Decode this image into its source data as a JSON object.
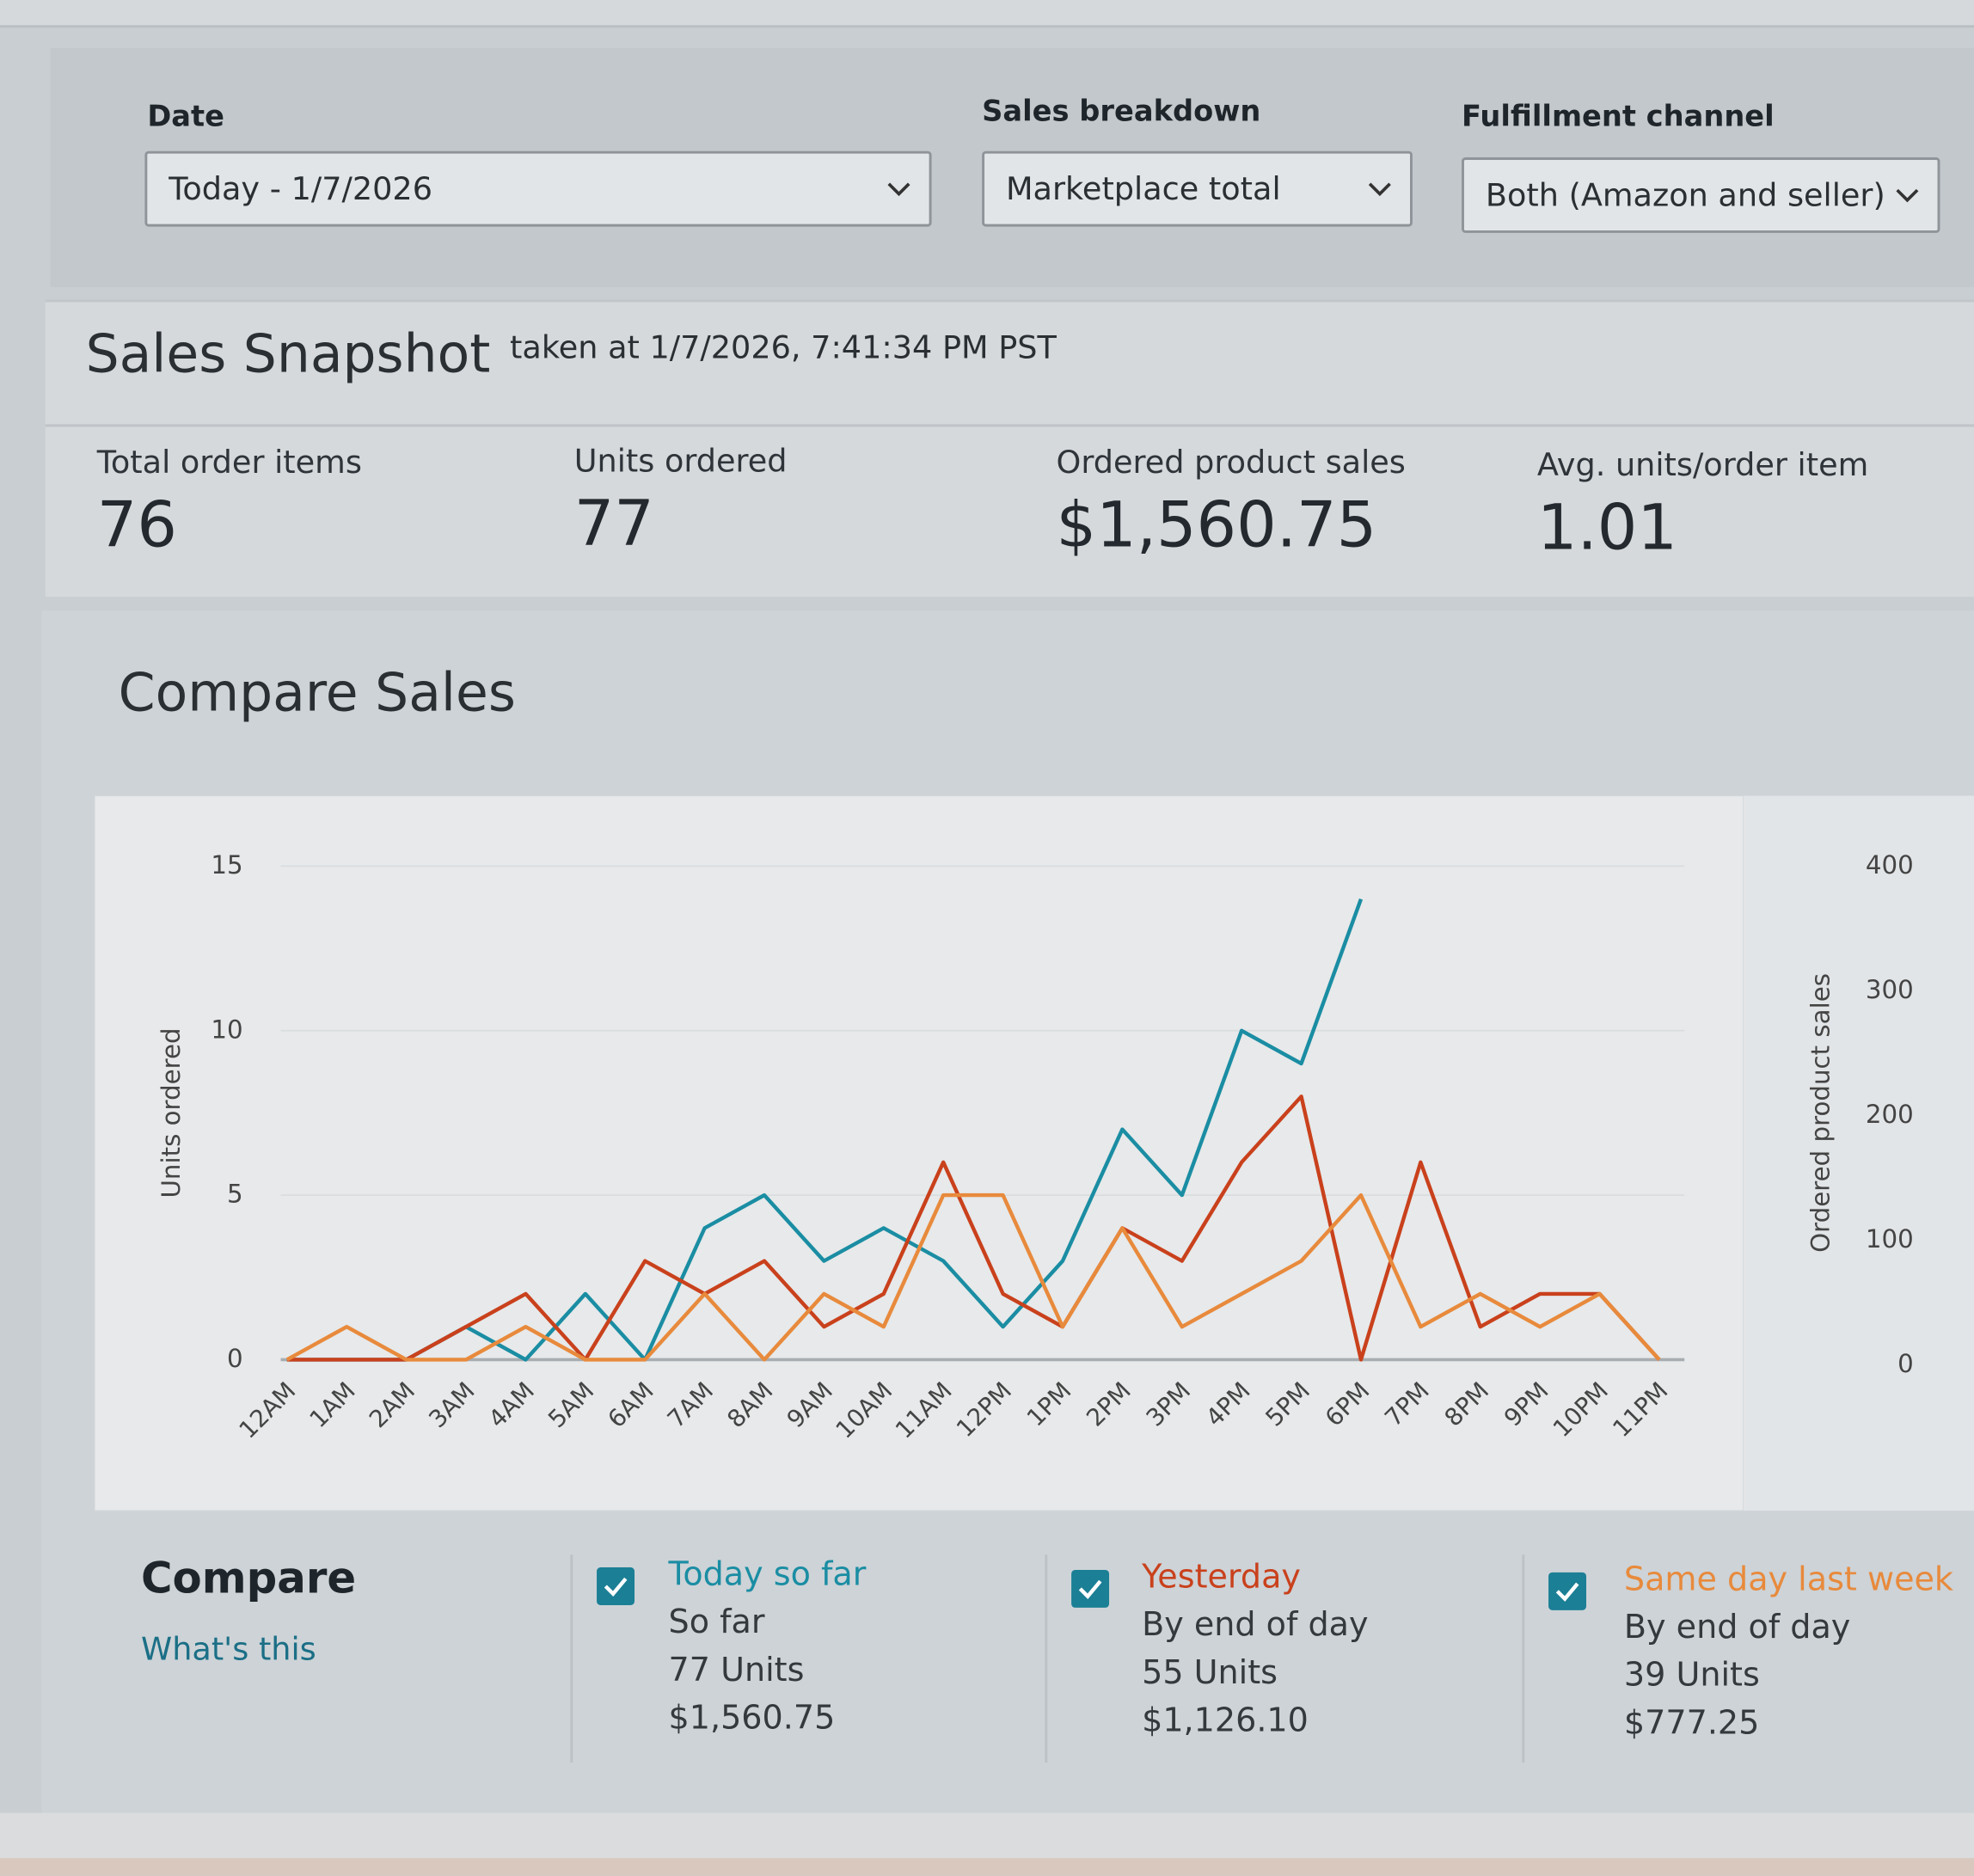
{
  "filters": [
    {
      "label": "Date",
      "value": "Today - 1/7/2026"
    },
    {
      "label": "Sales breakdown",
      "value": "Marketplace total"
    },
    {
      "label": "Fulfillment channel",
      "value": "Both (Amazon and seller)"
    }
  ],
  "snapshot": {
    "title": "Sales Snapshot",
    "taken_at": "taken at 1/7/2026, 7:41:34 PM PST",
    "metrics": [
      {
        "label": "Total order items",
        "value": 76
      },
      {
        "label": "Units ordered",
        "value": 77
      },
      {
        "label": "Ordered product sales",
        "value": "$1,560.75"
      },
      {
        "label": "Avg. units/order item",
        "value": 1.01
      }
    ]
  },
  "compare_sales": {
    "title": "Compare Sales"
  },
  "chart_data": {
    "type": "line",
    "y_label": "Units ordered",
    "y2_label": "Ordered product sales",
    "categories": [
      "12AM",
      "1AM",
      "2AM",
      "3AM",
      "4AM",
      "5AM",
      "6AM",
      "7AM",
      "8AM",
      "9AM",
      "10AM",
      "11AM",
      "12PM",
      "1PM",
      "2PM",
      "3PM",
      "4PM",
      "5PM",
      "6PM",
      "7PM",
      "8PM",
      "9PM",
      "10PM",
      "11PM"
    ],
    "series": [
      {
        "name": "Today so far",
        "color": "#1a8da3",
        "values": [
          0,
          0,
          0,
          1,
          0,
          2,
          0,
          4,
          5,
          3,
          4,
          3,
          1,
          3,
          7,
          5,
          10,
          9,
          14,
          null,
          null,
          null,
          null,
          null
        ]
      },
      {
        "name": "Yesterday",
        "color": "#c9411c",
        "values": [
          0,
          0,
          0,
          1,
          2,
          0,
          3,
          2,
          3,
          1,
          2,
          6,
          2,
          1,
          4,
          3,
          6,
          8,
          0,
          6,
          1,
          2,
          2,
          0
        ]
      },
      {
        "name": "Same day last week",
        "color": "#e88a3c",
        "values": [
          0,
          1,
          0,
          0,
          1,
          0,
          0,
          2,
          0,
          2,
          1,
          5,
          5,
          1,
          4,
          1,
          2,
          3,
          5,
          1,
          2,
          1,
          2,
          0
        ]
      }
    ],
    "ylim": [
      0,
      15
    ],
    "yticks": [
      0,
      5,
      10,
      15
    ],
    "y2lim": [
      0,
      400
    ],
    "y2ticks": [
      0,
      100,
      200,
      300,
      400
    ],
    "grid": true
  },
  "compare": {
    "title": "Compare",
    "link": "What's this",
    "items": [
      {
        "period": "So far",
        "units": "77 Units",
        "sales": "$1,560.75"
      },
      {
        "period": "By end of day",
        "units": "55 Units",
        "sales": "$1,126.10"
      },
      {
        "period": "By end of day",
        "units": "39 Units",
        "sales": "$777.25"
      }
    ]
  }
}
